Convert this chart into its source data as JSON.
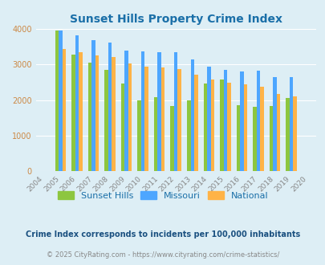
{
  "title": "Sunset Hills Property Crime Index",
  "years": [
    2004,
    2005,
    2006,
    2007,
    2008,
    2009,
    2010,
    2011,
    2012,
    2013,
    2014,
    2015,
    2016,
    2017,
    2018,
    2019,
    2020
  ],
  "sunset_hills": [
    0,
    3970,
    3280,
    3060,
    2840,
    2460,
    2000,
    2080,
    1840,
    2000,
    2460,
    2580,
    1860,
    1810,
    1830,
    2060,
    0
  ],
  "missouri": [
    0,
    3960,
    3820,
    3700,
    3620,
    3390,
    3370,
    3350,
    3340,
    3140,
    2940,
    2860,
    2800,
    2820,
    2640,
    2640,
    0
  ],
  "national": [
    0,
    3430,
    3350,
    3270,
    3210,
    3040,
    2950,
    2920,
    2870,
    2720,
    2590,
    2490,
    2440,
    2370,
    2170,
    2100,
    0
  ],
  "sunset_hills_color": "#8dc63f",
  "missouri_color": "#4da6ff",
  "national_color": "#ffb347",
  "bg_color": "#ddeef5",
  "plot_bg_color": "#ddeef5",
  "ylim": [
    0,
    4000
  ],
  "yticks": [
    0,
    1000,
    2000,
    3000,
    4000
  ],
  "footnote1": "Crime Index corresponds to incidents per 100,000 inhabitants",
  "footnote2": "© 2025 CityRating.com - https://www.cityrating.com/crime-statistics/",
  "title_color": "#1a6fa8",
  "footnote1_color": "#1a5080",
  "footnote2_color": "#888888",
  "ytick_color": "#cc8844",
  "xtick_color": "#888888"
}
